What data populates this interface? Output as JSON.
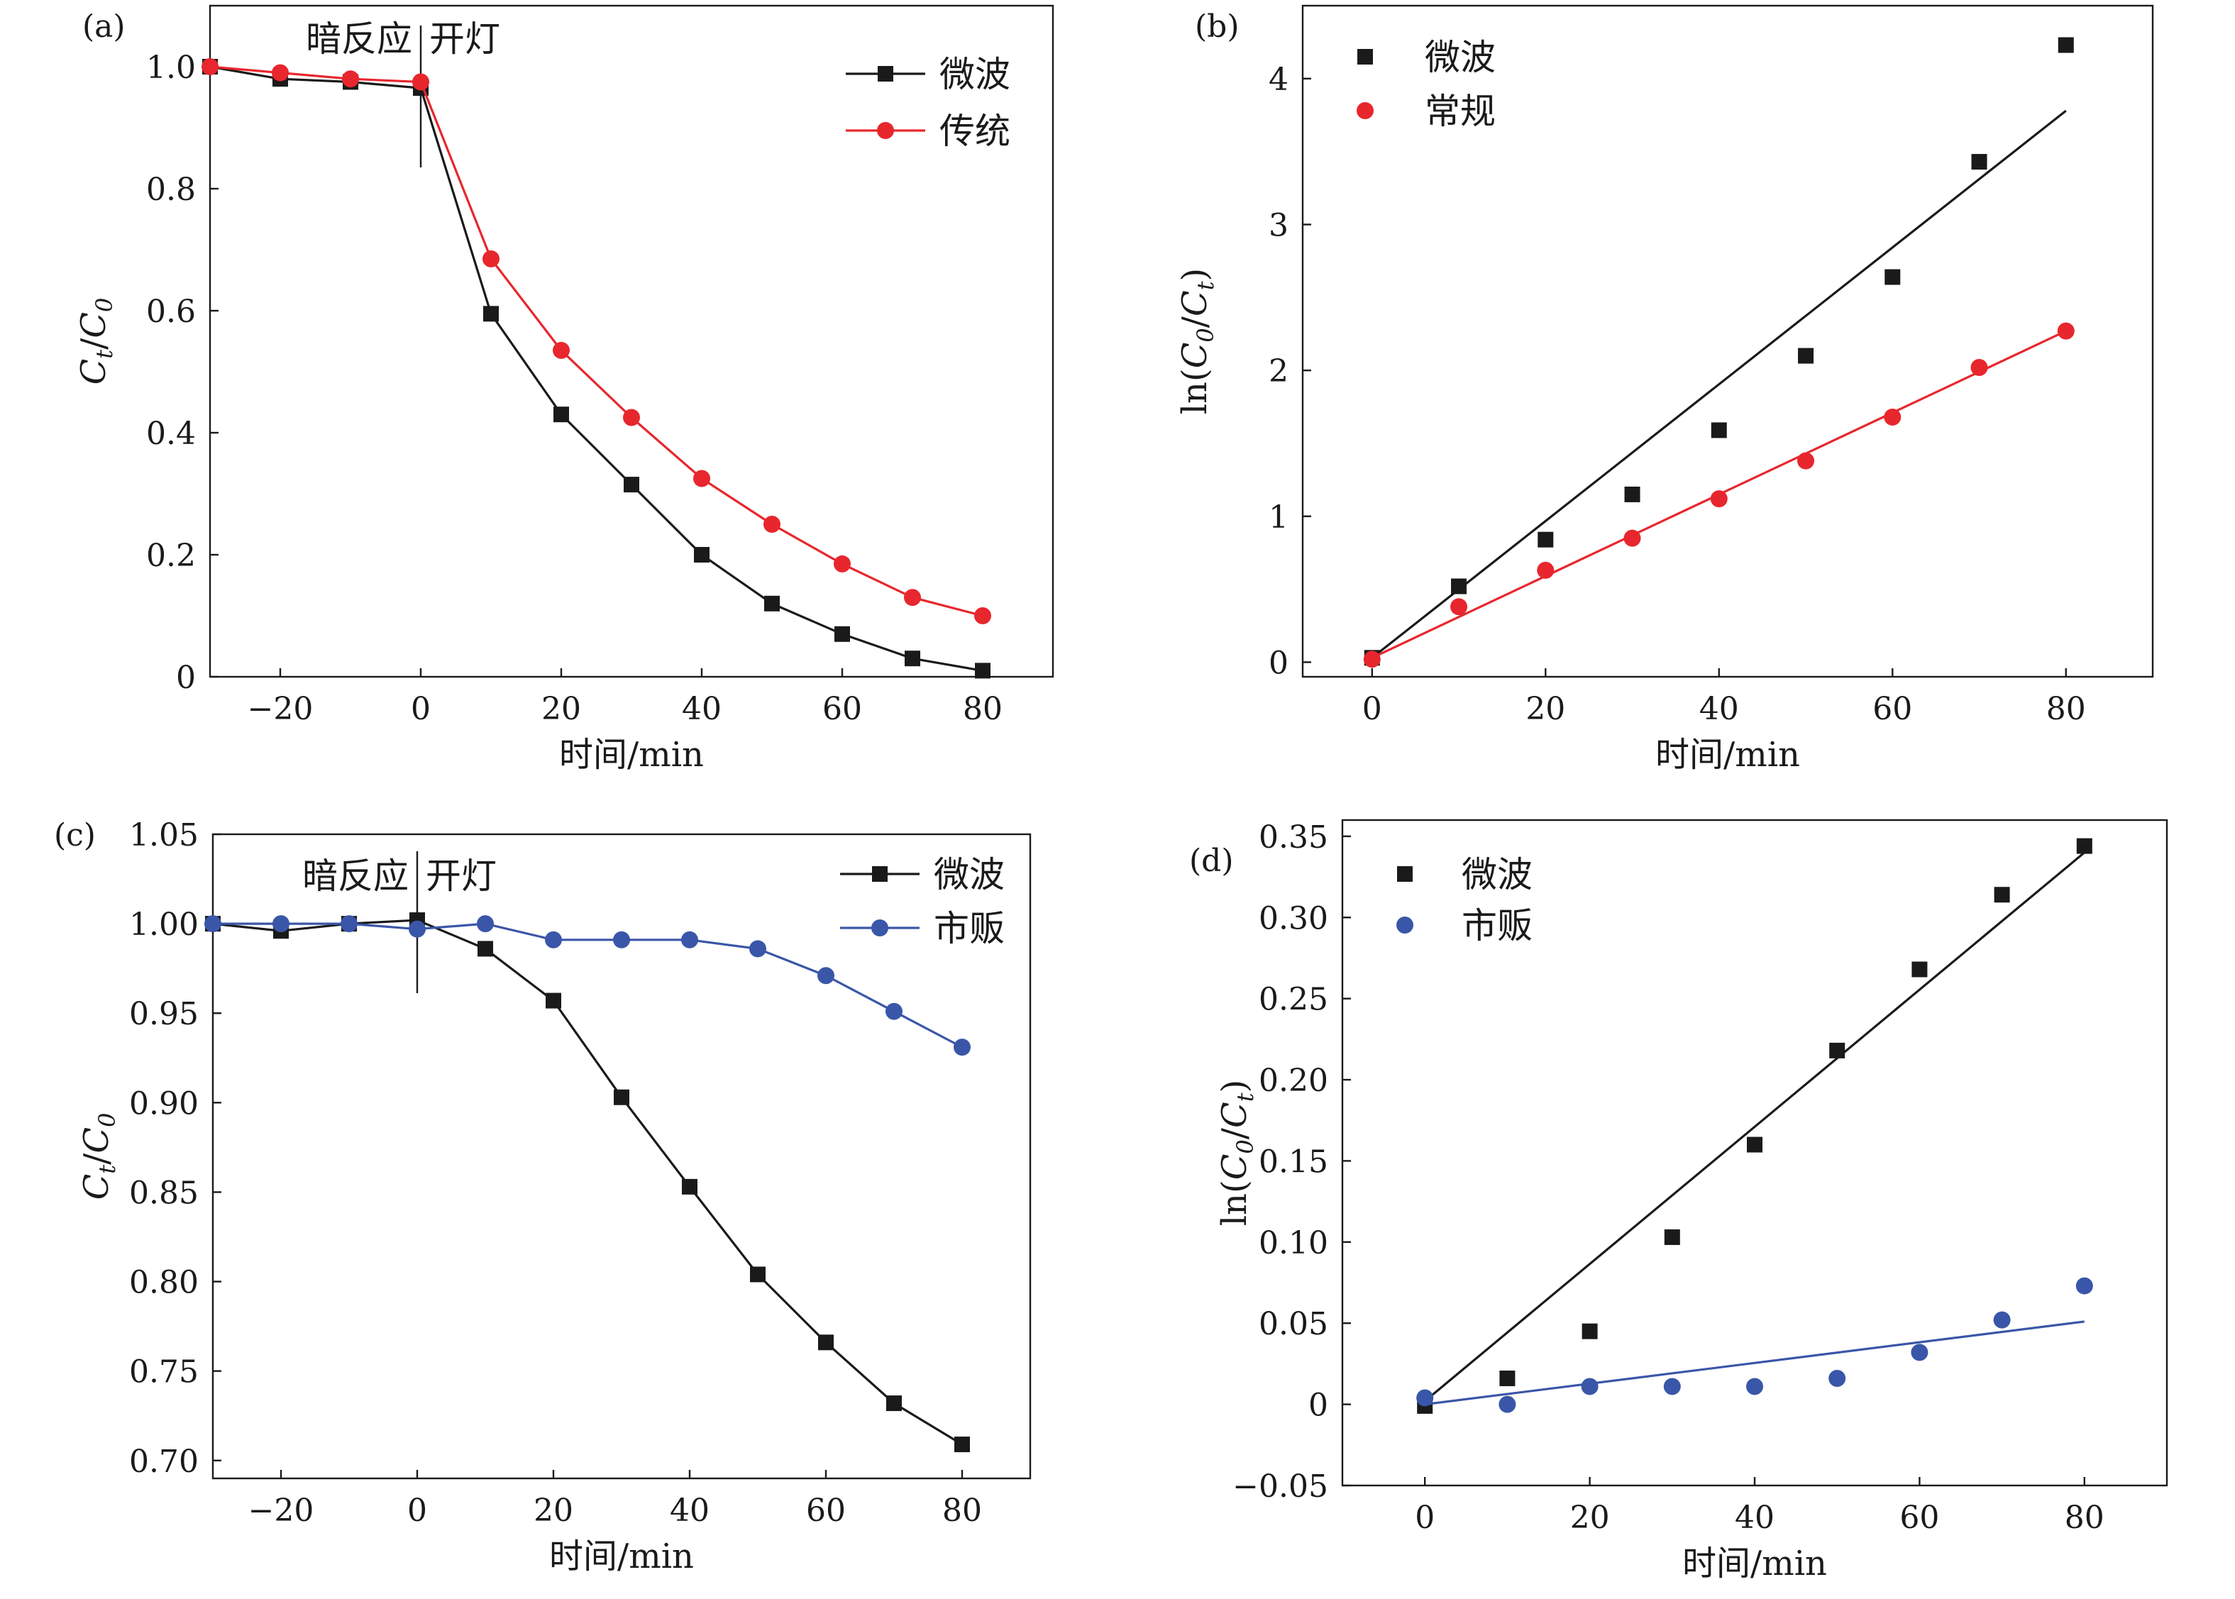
{
  "chart_data": [
    {
      "type": "line",
      "panel_label": "(a)",
      "title": "",
      "xlabel": "时间/min",
      "ylabel": "Ct/C0",
      "ylabel_parts": {
        "a": "C",
        "a_sub": "t",
        "sep": "/",
        "b": "C",
        "b_sub": "0"
      },
      "xlim": [
        -30,
        90
      ],
      "ylim": [
        0,
        1.1
      ],
      "xticks": [
        -20,
        0,
        20,
        40,
        60,
        80
      ],
      "yticks": [
        0,
        0.2,
        0.4,
        0.6,
        0.8,
        1.0
      ],
      "ytick_labels": [
        "0",
        "0.2",
        "0.4",
        "0.6",
        "0.8",
        "1.0"
      ],
      "xtick_labels": [
        "−20",
        "0",
        "20",
        "40",
        "60",
        "80"
      ],
      "grid": false,
      "legend_position": "top-right",
      "annotation": {
        "x": 0,
        "left_text": "暗反应",
        "right_text": "开灯"
      },
      "series": [
        {
          "name": "微波",
          "marker": "square",
          "color": "#1a1a1a",
          "line": true,
          "x": [
            -30,
            -20,
            -10,
            0,
            10,
            20,
            30,
            40,
            50,
            60,
            70,
            80
          ],
          "y": [
            1.0,
            0.98,
            0.975,
            0.965,
            0.595,
            0.43,
            0.315,
            0.2,
            0.12,
            0.07,
            0.03,
            0.01
          ]
        },
        {
          "name": "传统",
          "marker": "circle",
          "color": "#e8262d",
          "line": true,
          "x": [
            -30,
            -20,
            -10,
            0,
            10,
            20,
            30,
            40,
            50,
            60,
            70,
            80
          ],
          "y": [
            1.0,
            0.99,
            0.98,
            0.975,
            0.685,
            0.535,
            0.425,
            0.325,
            0.25,
            0.185,
            0.13,
            0.1
          ]
        }
      ]
    },
    {
      "type": "scatter",
      "panel_label": "(b)",
      "title": "",
      "xlabel": "时间/min",
      "ylabel": "ln(C0/Ct)",
      "ylabel_parts": {
        "pre": "ln(",
        "a": "C",
        "a_sub": "0",
        "sep": "/",
        "b": "C",
        "b_sub": "t",
        "post": ")"
      },
      "xlim": [
        -8,
        90
      ],
      "ylim": [
        -0.1,
        4.5
      ],
      "xticks": [
        0,
        20,
        40,
        60,
        80
      ],
      "yticks": [
        0,
        1,
        2,
        3,
        4
      ],
      "ytick_labels": [
        "0",
        "1",
        "2",
        "3",
        "4"
      ],
      "xtick_labels": [
        "0",
        "20",
        "40",
        "60",
        "80"
      ],
      "grid": false,
      "legend_position": "top-left",
      "series": [
        {
          "name": "微波",
          "marker": "square",
          "color": "#1a1a1a",
          "line": false,
          "x": [
            0,
            10,
            20,
            30,
            40,
            50,
            60,
            70,
            80
          ],
          "y": [
            0.03,
            0.52,
            0.84,
            1.15,
            1.59,
            2.1,
            2.64,
            3.43,
            4.23
          ],
          "fit": {
            "x": [
              0,
              80
            ],
            "y": [
              0.03,
              3.78
            ]
          }
        },
        {
          "name": "常规",
          "marker": "circle",
          "color": "#e8262d",
          "line": false,
          "x": [
            0,
            10,
            20,
            30,
            40,
            50,
            60,
            70,
            80
          ],
          "y": [
            0.02,
            0.38,
            0.63,
            0.85,
            1.12,
            1.38,
            1.68,
            2.02,
            2.27
          ],
          "fit": {
            "x": [
              0,
              80
            ],
            "y": [
              0.03,
              2.27
            ]
          }
        }
      ]
    },
    {
      "type": "line",
      "panel_label": "(c)",
      "title": "",
      "xlabel": "时间/min",
      "ylabel": "Ct/C0",
      "ylabel_parts": {
        "a": "C",
        "a_sub": "t",
        "sep": "/",
        "b": "C",
        "b_sub": "0"
      },
      "xlim": [
        -30,
        90
      ],
      "ylim": [
        0.69,
        1.05
      ],
      "xticks": [
        -20,
        0,
        20,
        40,
        60,
        80
      ],
      "yticks": [
        0.7,
        0.75,
        0.8,
        0.85,
        0.9,
        0.95,
        1.0,
        1.05
      ],
      "ytick_labels": [
        "0.70",
        "0.75",
        "0.80",
        "0.85",
        "0.90",
        "0.95",
        "1.00",
        "1.05"
      ],
      "xtick_labels": [
        "−20",
        "0",
        "20",
        "40",
        "60",
        "80"
      ],
      "grid": false,
      "legend_position": "top-right",
      "annotation": {
        "x": 0,
        "left_text": "暗反应",
        "right_text": "开灯"
      },
      "series": [
        {
          "name": "微波",
          "marker": "square",
          "color": "#1a1a1a",
          "line": true,
          "x": [
            -30,
            -20,
            -10,
            0,
            10,
            20,
            30,
            40,
            50,
            60,
            70,
            80
          ],
          "y": [
            1.0,
            0.996,
            1.0,
            1.002,
            0.986,
            0.957,
            0.903,
            0.853,
            0.804,
            0.766,
            0.732,
            0.709
          ]
        },
        {
          "name": "市贩",
          "marker": "circle",
          "color": "#3a56a8",
          "line": true,
          "x": [
            -30,
            -20,
            -10,
            0,
            10,
            20,
            30,
            40,
            50,
            60,
            70,
            80
          ],
          "y": [
            1.0,
            1.0,
            1.0,
            0.997,
            1.0,
            0.991,
            0.991,
            0.991,
            0.986,
            0.971,
            0.951,
            0.931
          ]
        }
      ]
    },
    {
      "type": "scatter",
      "panel_label": "(d)",
      "title": "",
      "xlabel": "时间/min",
      "ylabel": "ln(C0/Ct)",
      "ylabel_parts": {
        "pre": "ln(",
        "a": "C",
        "a_sub": "0",
        "sep": "/",
        "b": "C",
        "b_sub": "t",
        "post": ")"
      },
      "xlim": [
        -10,
        90
      ],
      "ylim": [
        -0.05,
        0.36
      ],
      "xticks": [
        0,
        20,
        40,
        60,
        80
      ],
      "yticks": [
        -0.05,
        0,
        0.05,
        0.1,
        0.15,
        0.2,
        0.25,
        0.3,
        0.35
      ],
      "ytick_labels": [
        "−0.05",
        "0",
        "0.05",
        "0.10",
        "0.15",
        "0.20",
        "0.25",
        "0.30",
        "0.35"
      ],
      "xtick_labels": [
        "0",
        "20",
        "40",
        "60",
        "80"
      ],
      "grid": false,
      "legend_position": "top-left",
      "series": [
        {
          "name": "微波",
          "marker": "square",
          "color": "#1a1a1a",
          "line": false,
          "x": [
            0,
            10,
            20,
            30,
            40,
            50,
            60,
            70,
            80
          ],
          "y": [
            -0.001,
            0.016,
            0.045,
            0.103,
            0.16,
            0.218,
            0.268,
            0.314,
            0.344
          ],
          "fit": {
            "x": [
              0,
              80
            ],
            "y": [
              0.002,
              0.34
            ]
          }
        },
        {
          "name": "市贩",
          "marker": "circle",
          "color": "#3a56a8",
          "line": false,
          "x": [
            0,
            10,
            20,
            30,
            40,
            50,
            60,
            70,
            80
          ],
          "y": [
            0.004,
            0.0,
            0.011,
            0.011,
            0.011,
            0.016,
            0.032,
            0.052,
            0.073
          ],
          "fit": {
            "x": [
              0,
              80
            ],
            "y": [
              0.0,
              0.051
            ]
          }
        }
      ]
    }
  ]
}
